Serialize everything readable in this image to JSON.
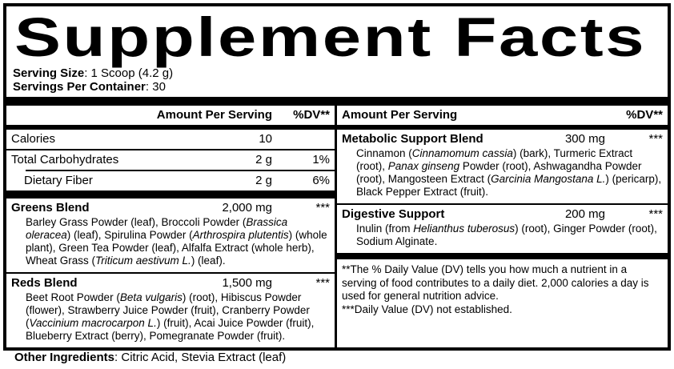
{
  "label": {
    "title": "Supplement Facts",
    "serving_size_label": "Serving Size",
    "serving_size_value": ": 1 Scoop (4.2 g)",
    "servings_label": "Servings Per Container",
    "servings_value": ": 30"
  },
  "left": {
    "header": {
      "amount": "Amount Per Serving",
      "dv": "%DV**"
    },
    "nutrients": [
      {
        "name": "Calories",
        "amount": "10",
        "dv": ""
      },
      {
        "name": "Total Carbohydrates",
        "amount": "2 g",
        "dv": "1%"
      },
      {
        "name": "Dietary Fiber",
        "amount": "2 g",
        "dv": "6%"
      }
    ],
    "blends": [
      {
        "name": "Greens Blend",
        "amount": "2,000 mg",
        "dv": "***",
        "desc": [
          {
            "t": "Barley Grass Powder (leaf), Broccoli Powder ("
          },
          {
            "t": "Brassica oleracea",
            "i": true
          },
          {
            "t": ") (leaf), Spirulina Powder ("
          },
          {
            "t": "Arthrospira plutentis",
            "i": true
          },
          {
            "t": ") (whole plant), Green Tea Powder (leaf), Alfalfa Extract (whole herb), Wheat Grass ("
          },
          {
            "t": "Triticum aestivum L.",
            "i": true
          },
          {
            "t": ") (leaf)."
          }
        ]
      },
      {
        "name": "Reds Blend",
        "amount": "1,500 mg",
        "dv": "***",
        "desc": [
          {
            "t": "Beet Root Powder ("
          },
          {
            "t": "Beta vulgaris",
            "i": true
          },
          {
            "t": ") (root), Hibiscus Powder (flower), Strawberry Juice Powder (fruit), Cranberry Powder ("
          },
          {
            "t": "Vaccinium macrocarpon L.",
            "i": true
          },
          {
            "t": ") (fruit), Acai Juice Powder (fruit), Blueberry Extract (berry), Pomegranate Powder (fruit)."
          }
        ]
      }
    ]
  },
  "right": {
    "header": {
      "amount": "Amount Per Serving",
      "dv": "%DV**"
    },
    "blends": [
      {
        "name": "Metabolic Support Blend",
        "amount": "300 mg",
        "dv": "***",
        "desc": [
          {
            "t": "Cinnamon ("
          },
          {
            "t": "Cinnamomum cassia",
            "i": true
          },
          {
            "t": ") (bark), Turmeric Extract (root), "
          },
          {
            "t": "Panax ginseng",
            "i": true
          },
          {
            "t": " Powder (root), Ashwagandha Powder (root), Mangosteen Extract ("
          },
          {
            "t": "Garcinia Mangostana L.",
            "i": true
          },
          {
            "t": ") (pericarp), Black Pepper Extract (fruit)."
          }
        ]
      },
      {
        "name": "Digestive Support",
        "amount": "200 mg",
        "dv": "***",
        "desc": [
          {
            "t": "Inulin (from "
          },
          {
            "t": "Helianthus tuberosus",
            "i": true
          },
          {
            "t": ") (root), Ginger Powder (root), Sodium Alginate."
          }
        ]
      }
    ],
    "footnotes": [
      "**The % Daily Value (DV) tells you how much a nutrient in a serving of food contributes to a daily diet. 2,000 calories a day is used for general nutrition advice.",
      "***Daily Value (DV) not established."
    ]
  },
  "other_ingredients": {
    "label": "Other Ingredients",
    "value": ": Citric Acid, Stevia Extract (leaf)"
  }
}
